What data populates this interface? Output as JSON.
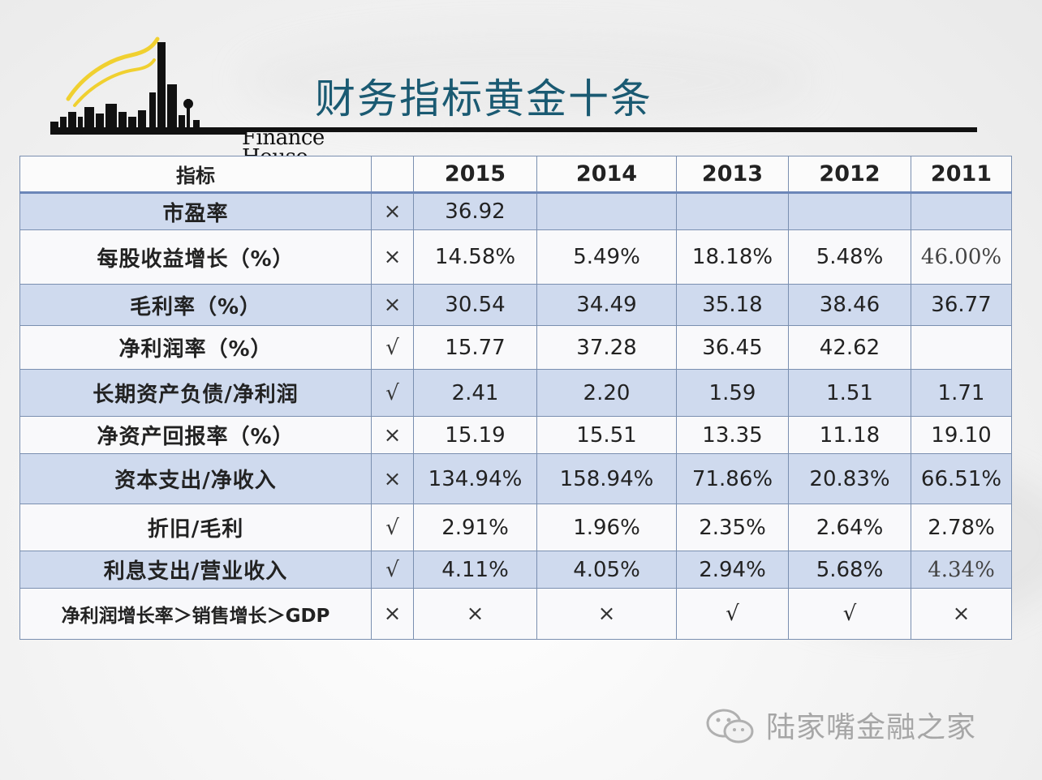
{
  "logo": {
    "text": "Finance House",
    "brand_color": "#f0d030"
  },
  "title": "财务指标黄金十条",
  "table": {
    "headers": [
      "指标",
      "",
      "2015",
      "2014",
      "2013",
      "2012",
      "2011"
    ],
    "rows": [
      {
        "metric": "市盈率",
        "mark": "×",
        "values": [
          "36.92",
          "",
          "",
          "",
          ""
        ]
      },
      {
        "metric": "每股收益增长（%）",
        "mark": "×",
        "values": [
          "14.58%",
          "5.49%",
          "18.18%",
          "5.48%",
          "46.00%"
        ]
      },
      {
        "metric": "毛利率（%）",
        "mark": "×",
        "values": [
          "30.54",
          "34.49",
          "35.18",
          "38.46",
          "36.77"
        ]
      },
      {
        "metric": "净利润率（%）",
        "mark": "√",
        "values": [
          "15.77",
          "37.28",
          "36.45",
          "42.62",
          ""
        ]
      },
      {
        "metric": "长期资产负债/净利润",
        "mark": "√",
        "values": [
          "2.41",
          "2.20",
          "1.59",
          "1.51",
          "1.71"
        ]
      },
      {
        "metric": "净资产回报率（%）",
        "mark": "×",
        "values": [
          "15.19",
          "15.51",
          "13.35",
          "11.18",
          "19.10"
        ]
      },
      {
        "metric": "资本支出/净收入",
        "mark": "×",
        "values": [
          "134.94%",
          "158.94%",
          "71.86%",
          "20.83%",
          "66.51%"
        ]
      },
      {
        "metric": "折旧/毛利",
        "mark": "√",
        "values": [
          "2.91%",
          "1.96%",
          "2.35%",
          "2.64%",
          "2.78%"
        ]
      },
      {
        "metric": "利息支出/营业收入",
        "mark": "√",
        "values": [
          "4.11%",
          "4.05%",
          "2.94%",
          "5.68%",
          "4.34%"
        ]
      },
      {
        "metric": "净利润增长率＞销售增长＞GDP",
        "mark": "×",
        "values": [
          "×",
          "×",
          "√",
          "√",
          "×"
        ]
      }
    ]
  },
  "watermark": {
    "icon": "wechat-icon",
    "text": "陆家嘴金融之家"
  },
  "colors": {
    "title": "#1a5a72",
    "band": "#cfdaee",
    "border": "#7a8fb0",
    "rule": "#111111"
  }
}
